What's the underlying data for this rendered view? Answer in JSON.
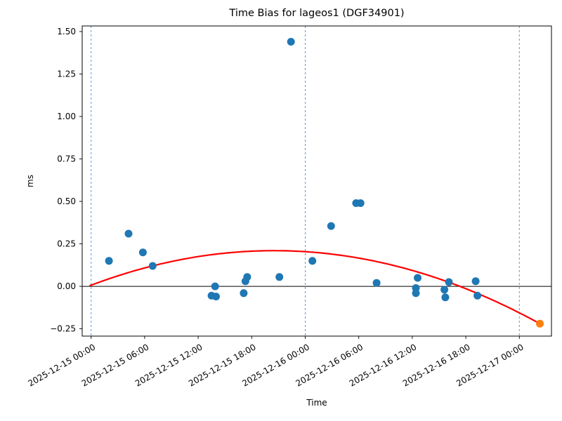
{
  "figure": {
    "background": "#ffffff"
  },
  "chart_data": {
    "type": "scatter",
    "title": "Time Bias for lageos1 (DGF34901)",
    "xlabel": "Time",
    "ylabel": "ms",
    "x_unit": "hours since 2025-12-15 00:00",
    "xlim": [
      -1.0,
      51.6
    ],
    "ylim": [
      -0.293,
      1.533
    ],
    "grid": false,
    "legend": null,
    "zero_line": {
      "color": "#000000",
      "width": 1
    },
    "colors": {
      "observations": "#1f77b4",
      "endpoint": "#ff7f0e",
      "fit": "#ff0000",
      "midnight_gridline": "#5b9bd5",
      "spine": "#000000"
    },
    "x_ticks": [
      {
        "t": 0,
        "label": "2025-12-15 00:00"
      },
      {
        "t": 6,
        "label": "2025-12-15 06:00"
      },
      {
        "t": 12,
        "label": "2025-12-15 12:00"
      },
      {
        "t": 18,
        "label": "2025-12-15 18:00"
      },
      {
        "t": 24,
        "label": "2025-12-16 00:00"
      },
      {
        "t": 30,
        "label": "2025-12-16 06:00"
      },
      {
        "t": 36,
        "label": "2025-12-16 12:00"
      },
      {
        "t": 42,
        "label": "2025-12-16 18:00"
      },
      {
        "t": 48,
        "label": "2025-12-17 00:00"
      }
    ],
    "y_ticks": [
      {
        "v": 1.5,
        "label": "1.50"
      },
      {
        "v": 1.25,
        "label": "1.25"
      },
      {
        "v": 1.0,
        "label": "1.00"
      },
      {
        "v": 0.75,
        "label": "0.75"
      },
      {
        "v": 0.5,
        "label": "0.50"
      },
      {
        "v": 0.25,
        "label": "0.25"
      },
      {
        "v": 0.0,
        "label": "0.00"
      },
      {
        "v": -0.25,
        "label": "−0.25"
      }
    ],
    "midnight_gridlines_t": [
      0,
      24,
      48
    ],
    "series": [
      {
        "name": "observations",
        "marker": "circle",
        "color": "#1f77b4",
        "points": [
          [
            2.0,
            0.15
          ],
          [
            4.2,
            0.31
          ],
          [
            5.8,
            0.2
          ],
          [
            6.9,
            0.12
          ],
          [
            13.5,
            -0.055
          ],
          [
            13.9,
            0.0
          ],
          [
            14.0,
            -0.06
          ],
          [
            17.1,
            -0.04
          ],
          [
            17.3,
            0.03
          ],
          [
            17.5,
            0.055
          ],
          [
            21.1,
            0.055
          ],
          [
            22.4,
            1.44
          ],
          [
            24.8,
            0.15
          ],
          [
            26.9,
            0.355
          ],
          [
            29.7,
            0.49
          ],
          [
            30.2,
            0.49
          ],
          [
            32.0,
            0.02
          ],
          [
            36.4,
            -0.01
          ],
          [
            36.6,
            0.05
          ],
          [
            36.4,
            -0.04
          ],
          [
            39.6,
            -0.02
          ],
          [
            40.1,
            0.025
          ],
          [
            39.7,
            -0.065
          ],
          [
            43.1,
            0.03
          ],
          [
            43.3,
            -0.055
          ]
        ]
      },
      {
        "name": "prediction-endpoint",
        "marker": "circle",
        "color": "#ff7f0e",
        "points": [
          [
            50.3,
            -0.22
          ]
        ]
      }
    ],
    "fit_curve": {
      "name": "quadratic-fit",
      "color": "#ff0000",
      "model": "ms = peak_ms + a*(t - peak_t)^2",
      "peak_t": 20.5,
      "peak_ms": 0.21,
      "a": -0.000484,
      "t_start": -0.2,
      "t_end": 50.3
    }
  }
}
